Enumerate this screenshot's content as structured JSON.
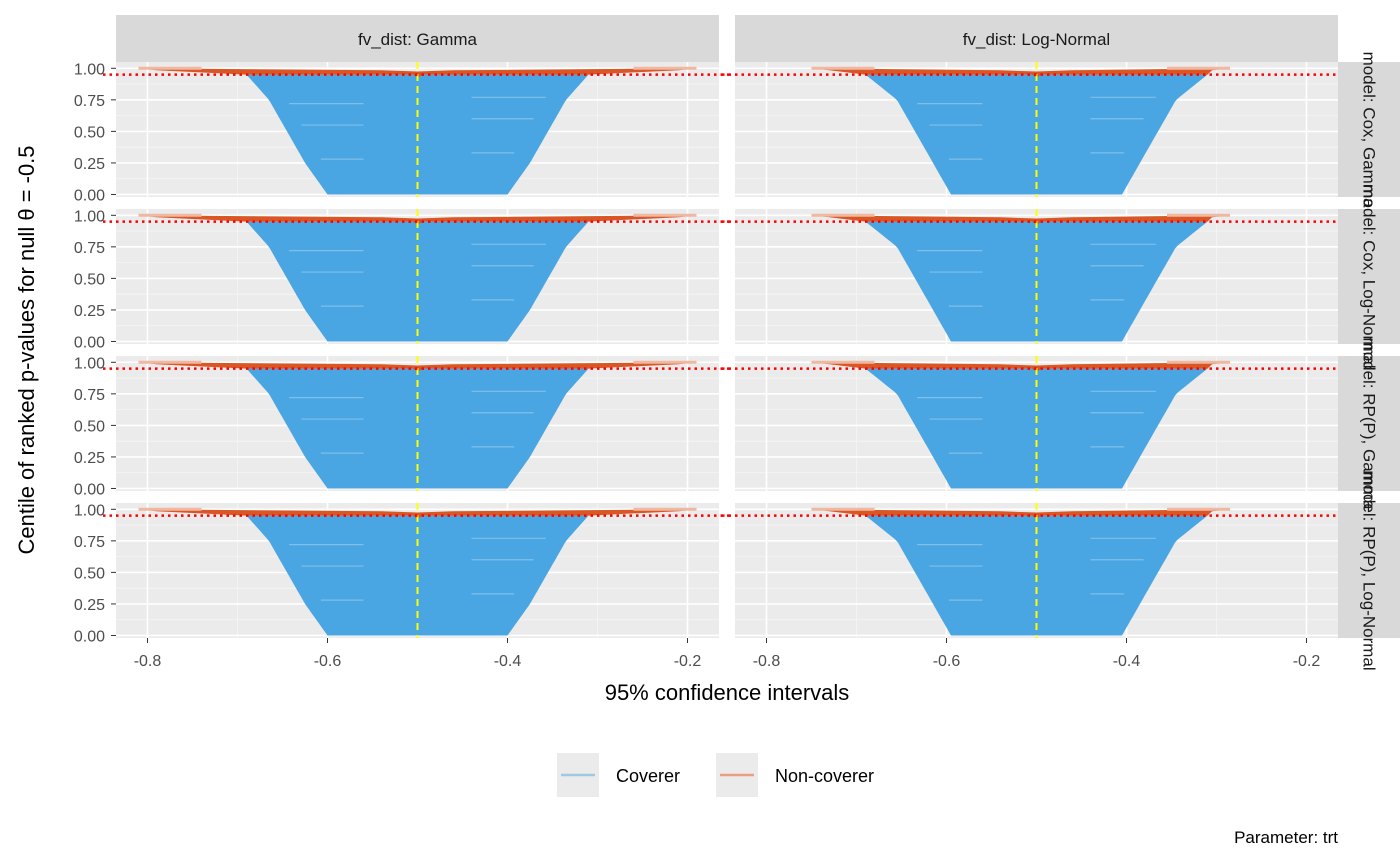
{
  "chart_data": {
    "type": "area",
    "xlabel": "95% confidence intervals",
    "ylabel": "Centile of ranked p-values for null θ = -0.5",
    "caption": "Parameter: trt",
    "facet_cols": [
      {
        "label": "fv_dist: Gamma"
      },
      {
        "label": "fv_dist: Log-Normal"
      }
    ],
    "facet_rows": [
      {
        "label": "model: Cox, Gamma"
      },
      {
        "label": "model: Cox, Log-Normal"
      },
      {
        "label": "model: RP(P), Gamma"
      },
      {
        "label": "model: RP(P), Log-Normal"
      }
    ],
    "x_ticks": [
      "-0.8",
      "-0.6",
      "-0.4",
      "-0.2"
    ],
    "x_tick_values": [
      -0.8,
      -0.6,
      -0.4,
      -0.2
    ],
    "y_ticks": [
      "0.00",
      "0.25",
      "0.50",
      "0.75",
      "1.00"
    ],
    "y_tick_values": [
      0,
      0.25,
      0.5,
      0.75,
      1.0
    ],
    "xlim": [
      -0.835,
      -0.165
    ],
    "ylim": [
      -0.02,
      1.05
    ],
    "true_value": -0.5,
    "nominal_coverage": 0.95,
    "legend": {
      "placement": "bottom",
      "entries": [
        {
          "label": "Coverer",
          "color": "#9ecae1"
        },
        {
          "label": "Non-coverer",
          "color": "#e8a07e"
        }
      ]
    },
    "colors": {
      "coverer": "#4aa6e2",
      "non_coverer": "#d64a12",
      "true_line": "#ffff00",
      "coverage_line": "#ff0000",
      "panel_bg": "#ebebeb",
      "strip_bg": "#d9d9d9"
    },
    "panels": [
      {
        "row": 0,
        "col": 0,
        "coverer_lower": [
          [
            0,
            -0.6
          ],
          [
            0.25,
            -0.625
          ],
          [
            0.5,
            -0.645
          ],
          [
            0.75,
            -0.665
          ],
          [
            0.95,
            -0.69
          ]
        ],
        "coverer_upper": [
          [
            0,
            -0.4
          ],
          [
            0.25,
            -0.375
          ],
          [
            0.5,
            -0.355
          ],
          [
            0.75,
            -0.335
          ],
          [
            0.95,
            -0.31
          ]
        ],
        "noncoverer_lower_min": -0.81,
        "noncoverer_upper_max": -0.19
      },
      {
        "row": 0,
        "col": 1,
        "coverer_lower": [
          [
            0,
            -0.595
          ],
          [
            0.25,
            -0.615
          ],
          [
            0.5,
            -0.635
          ],
          [
            0.75,
            -0.655
          ],
          [
            0.95,
            -0.69
          ]
        ],
        "coverer_upper": [
          [
            0,
            -0.405
          ],
          [
            0.25,
            -0.385
          ],
          [
            0.5,
            -0.365
          ],
          [
            0.75,
            -0.345
          ],
          [
            0.95,
            -0.31
          ]
        ],
        "noncoverer_lower_min": -0.75,
        "noncoverer_upper_max": -0.285
      },
      {
        "row": 1,
        "col": 0,
        "coverer_lower": [
          [
            0,
            -0.6
          ],
          [
            0.25,
            -0.625
          ],
          [
            0.5,
            -0.645
          ],
          [
            0.75,
            -0.665
          ],
          [
            0.95,
            -0.69
          ]
        ],
        "coverer_upper": [
          [
            0,
            -0.4
          ],
          [
            0.25,
            -0.375
          ],
          [
            0.5,
            -0.355
          ],
          [
            0.75,
            -0.335
          ],
          [
            0.95,
            -0.31
          ]
        ],
        "noncoverer_lower_min": -0.81,
        "noncoverer_upper_max": -0.19
      },
      {
        "row": 1,
        "col": 1,
        "coverer_lower": [
          [
            0,
            -0.595
          ],
          [
            0.25,
            -0.615
          ],
          [
            0.5,
            -0.635
          ],
          [
            0.75,
            -0.655
          ],
          [
            0.95,
            -0.69
          ]
        ],
        "coverer_upper": [
          [
            0,
            -0.405
          ],
          [
            0.25,
            -0.385
          ],
          [
            0.5,
            -0.365
          ],
          [
            0.75,
            -0.345
          ],
          [
            0.95,
            -0.31
          ]
        ],
        "noncoverer_lower_min": -0.75,
        "noncoverer_upper_max": -0.285
      },
      {
        "row": 2,
        "col": 0,
        "coverer_lower": [
          [
            0,
            -0.6
          ],
          [
            0.25,
            -0.625
          ],
          [
            0.5,
            -0.645
          ],
          [
            0.75,
            -0.665
          ],
          [
            0.95,
            -0.69
          ]
        ],
        "coverer_upper": [
          [
            0,
            -0.4
          ],
          [
            0.25,
            -0.375
          ],
          [
            0.5,
            -0.355
          ],
          [
            0.75,
            -0.335
          ],
          [
            0.95,
            -0.31
          ]
        ],
        "noncoverer_lower_min": -0.81,
        "noncoverer_upper_max": -0.19
      },
      {
        "row": 2,
        "col": 1,
        "coverer_lower": [
          [
            0,
            -0.595
          ],
          [
            0.25,
            -0.615
          ],
          [
            0.5,
            -0.635
          ],
          [
            0.75,
            -0.655
          ],
          [
            0.95,
            -0.69
          ]
        ],
        "coverer_upper": [
          [
            0,
            -0.405
          ],
          [
            0.25,
            -0.385
          ],
          [
            0.5,
            -0.365
          ],
          [
            0.75,
            -0.345
          ],
          [
            0.95,
            -0.31
          ]
        ],
        "noncoverer_lower_min": -0.75,
        "noncoverer_upper_max": -0.285
      },
      {
        "row": 3,
        "col": 0,
        "coverer_lower": [
          [
            0,
            -0.6
          ],
          [
            0.25,
            -0.625
          ],
          [
            0.5,
            -0.645
          ],
          [
            0.75,
            -0.665
          ],
          [
            0.95,
            -0.69
          ]
        ],
        "coverer_upper": [
          [
            0,
            -0.4
          ],
          [
            0.25,
            -0.375
          ],
          [
            0.5,
            -0.355
          ],
          [
            0.75,
            -0.335
          ],
          [
            0.95,
            -0.31
          ]
        ],
        "noncoverer_lower_min": -0.81,
        "noncoverer_upper_max": -0.19
      },
      {
        "row": 3,
        "col": 1,
        "coverer_lower": [
          [
            0,
            -0.595
          ],
          [
            0.25,
            -0.615
          ],
          [
            0.5,
            -0.635
          ],
          [
            0.75,
            -0.655
          ],
          [
            0.95,
            -0.69
          ]
        ],
        "coverer_upper": [
          [
            0,
            -0.405
          ],
          [
            0.25,
            -0.385
          ],
          [
            0.5,
            -0.365
          ],
          [
            0.75,
            -0.345
          ],
          [
            0.95,
            -0.31
          ]
        ],
        "noncoverer_lower_min": -0.75,
        "noncoverer_upper_max": -0.285
      }
    ]
  }
}
